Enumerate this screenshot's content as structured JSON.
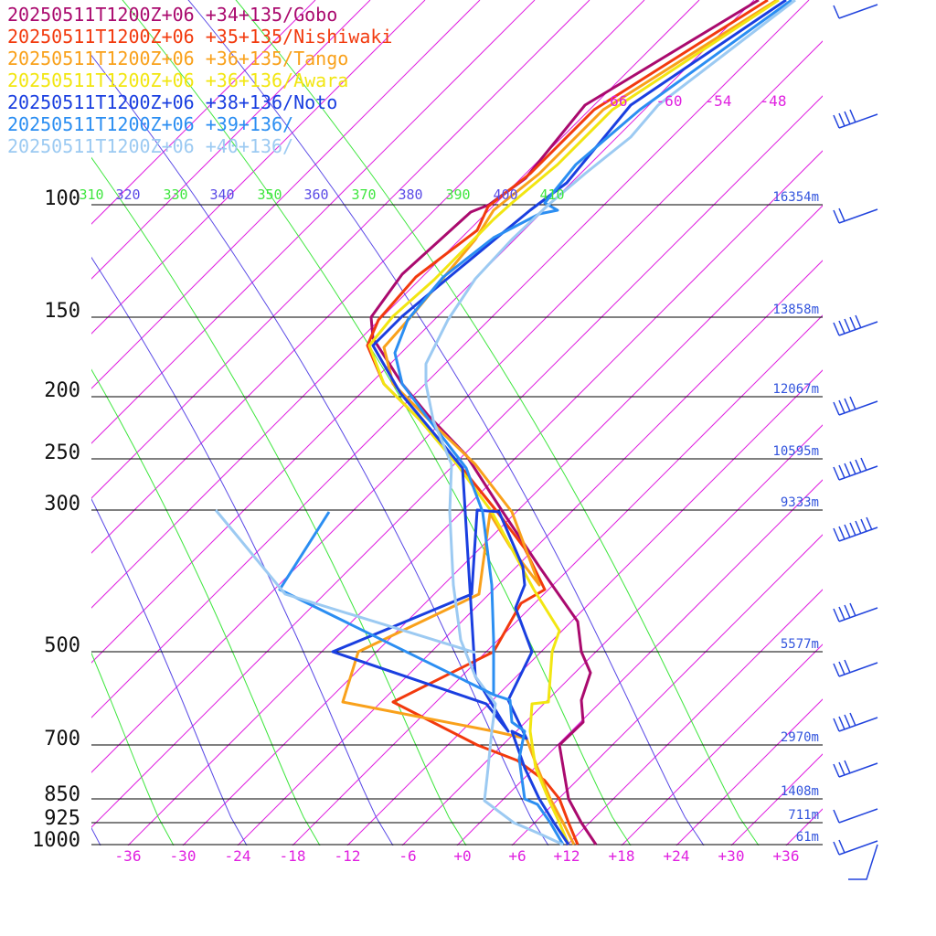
{
  "chart_data": {
    "type": "line",
    "subtype": "skew-t log-p sounding",
    "legend_position": "top-left",
    "series": [
      {
        "name": "20250511T1200Z+06 +34+135/Gobo",
        "color": "#aa0a6e"
      },
      {
        "name": "20250511T1200Z+06 +35+135/Nishiwaki",
        "color": "#f23a0e"
      },
      {
        "name": "20250511T1200Z+06 +36+135/Tango",
        "color": "#f9a11b"
      },
      {
        "name": "20250511T1200Z+06 +36+136/Awara",
        "color": "#f2e612"
      },
      {
        "name": "20250511T1200Z+06 +38+136/Noto",
        "color": "#1a3fe0"
      },
      {
        "name": "20250511T1200Z+06 +39+136/",
        "color": "#2b8ef2"
      },
      {
        "name": "20250511T1200Z+06 +40+136/",
        "color": "#9ccaf2"
      }
    ],
    "pressure_axis": {
      "labels": [
        "100",
        "150",
        "200",
        "250",
        "300",
        "500",
        "700",
        "850",
        "925",
        "1000"
      ],
      "heights": [
        "16354m",
        "13858m",
        "12067m",
        "10595m",
        "9333m",
        "5577m",
        "2970m",
        "1408m",
        "711m",
        "61m"
      ]
    },
    "temperature_axis": {
      "labels": [
        "-36",
        "-30",
        "-24",
        "-18",
        "-12",
        "-6",
        "+0",
        "+6",
        "+12",
        "+18",
        "+24",
        "+30",
        "+36"
      ],
      "upper_labels": [
        "-66",
        "-60",
        "-54",
        "-48"
      ]
    },
    "theta_labels": [
      "310",
      "320",
      "330",
      "340",
      "350",
      "360",
      "370",
      "380",
      "390",
      "400",
      "410"
    ],
    "colors": {
      "isotherm": "#e020e0",
      "theta_green": "#3ee63e",
      "theta_blue": "#5a4ae6",
      "height_label": "#3355dd",
      "isobar": "#000000",
      "wind_barb": "#2244dd"
    }
  }
}
